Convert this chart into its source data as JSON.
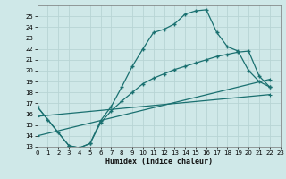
{
  "xlabel": "Humidex (Indice chaleur)",
  "bg_color": "#cfe8e8",
  "grid_color": "#b8d4d4",
  "line_color": "#1a7070",
  "xlim": [
    0,
    23
  ],
  "ylim": [
    13,
    26
  ],
  "xticks": [
    0,
    1,
    2,
    3,
    4,
    5,
    6,
    7,
    8,
    9,
    10,
    11,
    12,
    13,
    14,
    15,
    16,
    17,
    18,
    19,
    20,
    21,
    22,
    23
  ],
  "yticks": [
    13,
    14,
    15,
    16,
    17,
    18,
    19,
    20,
    21,
    22,
    23,
    24,
    25
  ],
  "curve1_x": [
    0,
    1,
    2,
    3,
    4,
    5,
    6,
    7,
    8,
    9,
    10,
    11,
    12,
    13,
    14,
    15,
    16,
    17,
    18,
    19,
    20,
    21,
    22
  ],
  "curve1_y": [
    16.7,
    15.5,
    14.3,
    13.1,
    12.9,
    13.3,
    15.4,
    16.7,
    18.5,
    20.4,
    22.0,
    23.5,
    23.8,
    24.3,
    25.2,
    25.5,
    25.6,
    23.5,
    22.2,
    21.8,
    20.0,
    19.0,
    18.5
  ],
  "curve2_x": [
    0,
    3,
    4,
    5,
    6,
    7,
    8,
    9,
    10,
    11,
    12,
    13,
    14,
    15,
    16,
    17,
    18,
    19,
    20,
    21,
    22
  ],
  "curve2_y": [
    16.7,
    13.1,
    12.9,
    13.3,
    15.2,
    16.3,
    17.2,
    18.0,
    18.8,
    19.3,
    19.7,
    20.1,
    20.4,
    20.7,
    21.0,
    21.3,
    21.5,
    21.7,
    21.8,
    19.5,
    18.5
  ],
  "curve3_x": [
    0,
    22
  ],
  "curve3_y": [
    15.8,
    17.8
  ],
  "curve4_x": [
    0,
    22
  ],
  "curve4_y": [
    14.0,
    19.2
  ]
}
